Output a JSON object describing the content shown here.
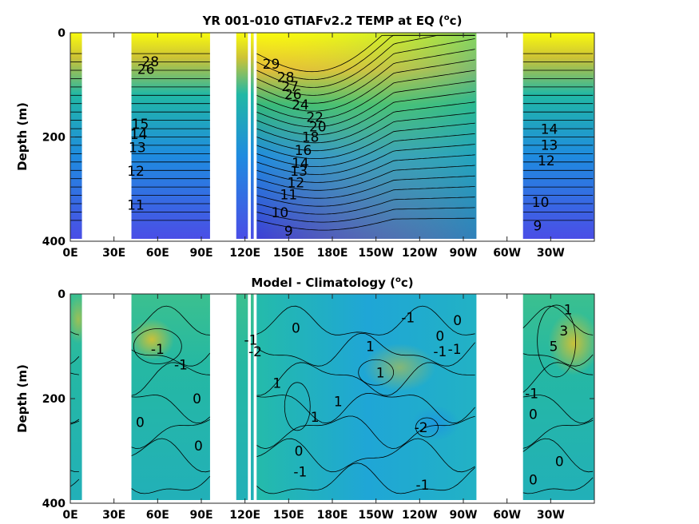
{
  "chart_data": [
    {
      "type": "heatmap",
      "title": "YR 001-010 GTIAFv2.2 TEMP at EQ",
      "title_sup": "o",
      "title_unit": "c",
      "ylabel": "Depth (m)",
      "xlabel": "",
      "x_ticks": [
        "0E",
        "30E",
        "60E",
        "90E",
        "120E",
        "150E",
        "180E",
        "150W",
        "120W",
        "90W",
        "60W",
        "30W"
      ],
      "x_tick_lon": [
        0,
        30,
        60,
        90,
        120,
        150,
        180,
        210,
        240,
        270,
        300,
        330
      ],
      "xlim": [
        0,
        360
      ],
      "y_ticks": [
        "0",
        "200",
        "400"
      ],
      "y_tick_values": [
        0,
        200,
        400
      ],
      "ylim": [
        400,
        0
      ],
      "y_reversed": true,
      "colormap": "parula",
      "colors": {
        "low": "#3e26a8",
        "mid": "#21b8a5",
        "high": "#f9fb0e"
      },
      "land_gaps_lon": [
        [
          8,
          42
        ],
        [
          96,
          114
        ],
        [
          122,
          124
        ],
        [
          126,
          128
        ],
        [
          279,
          311
        ]
      ],
      "contour_labels": [
        {
          "text": "29",
          "lon": 138,
          "depth": 60
        },
        {
          "text": "28",
          "lon": 148,
          "depth": 85
        },
        {
          "text": "27",
          "lon": 151,
          "depth": 103
        },
        {
          "text": "26",
          "lon": 153,
          "depth": 118
        },
        {
          "text": "24",
          "lon": 158,
          "depth": 138
        },
        {
          "text": "22",
          "lon": 168,
          "depth": 162
        },
        {
          "text": "20",
          "lon": 170,
          "depth": 180
        },
        {
          "text": "18",
          "lon": 165,
          "depth": 200
        },
        {
          "text": "16",
          "lon": 160,
          "depth": 225
        },
        {
          "text": "14",
          "lon": 158,
          "depth": 250
        },
        {
          "text": "13",
          "lon": 157,
          "depth": 265
        },
        {
          "text": "12",
          "lon": 155,
          "depth": 287
        },
        {
          "text": "11",
          "lon": 150,
          "depth": 310
        },
        {
          "text": "10",
          "lon": 144,
          "depth": 345
        },
        {
          "text": "9",
          "lon": 150,
          "depth": 380
        },
        {
          "text": "28",
          "lon": 55,
          "depth": 55
        },
        {
          "text": "26",
          "lon": 52,
          "depth": 70
        },
        {
          "text": "15",
          "lon": 48,
          "depth": 175
        },
        {
          "text": "14",
          "lon": 47,
          "depth": 195
        },
        {
          "text": "13",
          "lon": 46,
          "depth": 220
        },
        {
          "text": "12",
          "lon": 45,
          "depth": 265
        },
        {
          "text": "11",
          "lon": 45,
          "depth": 330
        },
        {
          "text": "14",
          "lon": 329,
          "depth": 185
        },
        {
          "text": "13",
          "lon": 329,
          "depth": 215
        },
        {
          "text": "12",
          "lon": 327,
          "depth": 245
        },
        {
          "text": "10",
          "lon": 323,
          "depth": 325
        },
        {
          "text": "9",
          "lon": 321,
          "depth": 370
        }
      ]
    },
    {
      "type": "heatmap",
      "title": "Model - Climatology",
      "title_sup": "o",
      "title_unit": "c",
      "ylabel": "Depth (m)",
      "xlabel": "",
      "x_ticks": [
        "0E",
        "30E",
        "60E",
        "90E",
        "120E",
        "150E",
        "180E",
        "150W",
        "120W",
        "90W",
        "60W",
        "30W"
      ],
      "x_tick_lon": [
        0,
        30,
        60,
        90,
        120,
        150,
        180,
        210,
        240,
        270,
        300,
        330
      ],
      "xlim": [
        0,
        360
      ],
      "y_ticks": [
        "0",
        "200",
        "400"
      ],
      "y_tick_values": [
        0,
        200,
        400
      ],
      "ylim": [
        400,
        0
      ],
      "y_reversed": true,
      "colormap": "parula",
      "colors": {
        "low": "#3e26a8",
        "mid": "#21b8a5",
        "high": "#f9fb0e"
      },
      "land_gaps_lon": [
        [
          8,
          42
        ],
        [
          96,
          114
        ],
        [
          122,
          124
        ],
        [
          126,
          128
        ],
        [
          279,
          311
        ]
      ],
      "contour_labels": [
        {
          "text": "-1",
          "lon": 60,
          "depth": 105
        },
        {
          "text": "-1",
          "lon": 76,
          "depth": 135
        },
        {
          "text": "0",
          "lon": 87,
          "depth": 200
        },
        {
          "text": "0",
          "lon": 48,
          "depth": 245
        },
        {
          "text": "0",
          "lon": 88,
          "depth": 290
        },
        {
          "text": "-1",
          "lon": 124,
          "depth": 88
        },
        {
          "text": "-2",
          "lon": 127,
          "depth": 110
        },
        {
          "text": "1",
          "lon": 142,
          "depth": 170
        },
        {
          "text": "0",
          "lon": 155,
          "depth": 65
        },
        {
          "text": "1",
          "lon": 168,
          "depth": 235
        },
        {
          "text": "1",
          "lon": 184,
          "depth": 205
        },
        {
          "text": "1",
          "lon": 206,
          "depth": 100
        },
        {
          "text": "1",
          "lon": 213,
          "depth": 150
        },
        {
          "text": "-1",
          "lon": 232,
          "depth": 45
        },
        {
          "text": "0",
          "lon": 254,
          "depth": 80
        },
        {
          "text": "-1",
          "lon": 254,
          "depth": 110
        },
        {
          "text": "0",
          "lon": 266,
          "depth": 50
        },
        {
          "text": "-1",
          "lon": 264,
          "depth": 105
        },
        {
          "text": "-2",
          "lon": 241,
          "depth": 255
        },
        {
          "text": "0",
          "lon": 157,
          "depth": 300
        },
        {
          "text": "-1",
          "lon": 158,
          "depth": 340
        },
        {
          "text": "-1",
          "lon": 242,
          "depth": 365
        },
        {
          "text": "1",
          "lon": 342,
          "depth": 30
        },
        {
          "text": "3",
          "lon": 339,
          "depth": 70
        },
        {
          "text": "5",
          "lon": 332,
          "depth": 100
        },
        {
          "text": "-1",
          "lon": 317,
          "depth": 190
        },
        {
          "text": "0",
          "lon": 318,
          "depth": 230
        },
        {
          "text": "0",
          "lon": 336,
          "depth": 320
        },
        {
          "text": "0",
          "lon": 318,
          "depth": 355
        }
      ]
    }
  ]
}
